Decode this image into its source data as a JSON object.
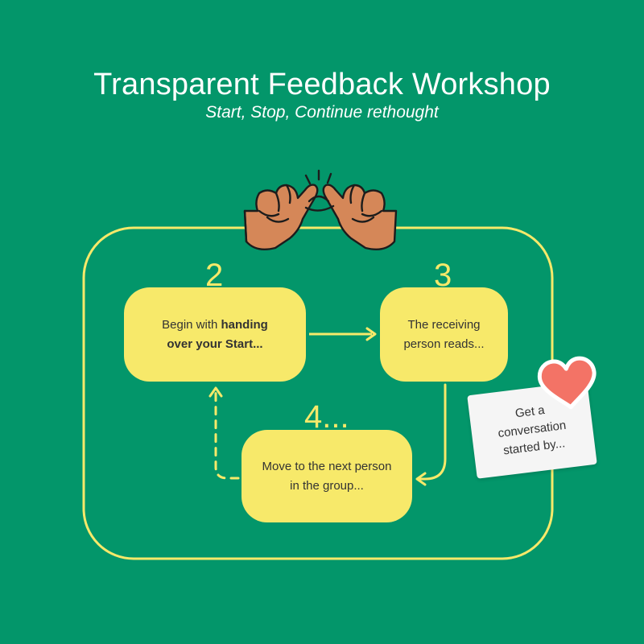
{
  "header": {
    "title": "Transparent Feedback Workshop",
    "subtitle": "Start, Stop, Continue rethought"
  },
  "steps": [
    {
      "number": "2",
      "text_plain": "Begin with ",
      "text_bold": "handing over your Start..."
    },
    {
      "number": "3",
      "text": "The receiving person reads..."
    },
    {
      "number": "4...",
      "text": "Move to the next person in the group..."
    }
  ],
  "note_card": {
    "text": "Get a conversation started by..."
  },
  "icons": {
    "top": "crossed-pinky-promise-hands-icon",
    "card": "heart-icon"
  },
  "colors": {
    "background": "#03966a",
    "accent_yellow": "#f7e96a",
    "heart": "#f37366",
    "skin": "#d58758"
  }
}
